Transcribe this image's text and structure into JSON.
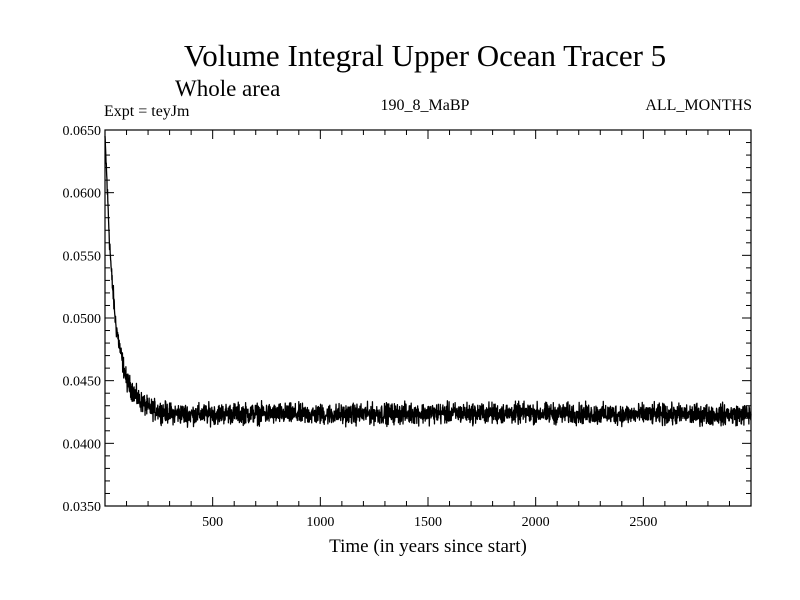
{
  "chart_data": {
    "type": "line",
    "title": "Volume Integral Upper Ocean Tracer 5",
    "subtitle": "Whole area",
    "annotations": {
      "expt": "Expt = teyJm",
      "run": "190_8_MaBP",
      "months": "ALL_MONTHS"
    },
    "xlabel": "Time (in years since start)",
    "ylabel": "",
    "xlim": [
      0,
      3000
    ],
    "ylim": [
      0.035,
      0.065
    ],
    "x_ticks": [
      500,
      1000,
      1500,
      2000,
      2500
    ],
    "x_tick_labels": [
      "500",
      "1000",
      "1500",
      "2000",
      "2500"
    ],
    "y_ticks": [
      0.035,
      0.04,
      0.045,
      0.05,
      0.055,
      0.06,
      0.065
    ],
    "y_tick_labels": [
      "0.0350",
      "0.0400",
      "0.0450",
      "0.0500",
      "0.0550",
      "0.0600",
      "0.0650"
    ],
    "series": [
      {
        "name": "Tracer 5",
        "color": "#000000",
        "x": [
          0,
          10,
          20,
          30,
          50,
          75,
          100,
          150,
          200,
          300,
          400,
          600,
          1000,
          1500,
          2000,
          2500,
          3000
        ],
        "values": [
          0.0645,
          0.0605,
          0.0565,
          0.0535,
          0.0495,
          0.047,
          0.045,
          0.0436,
          0.0428,
          0.0424,
          0.0423,
          0.0424,
          0.0423,
          0.0424,
          0.0424,
          0.0423,
          0.0423
        ],
        "noise_amplitude": 0.0012
      }
    ]
  }
}
